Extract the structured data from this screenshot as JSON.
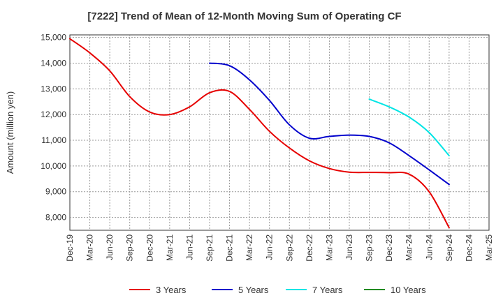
{
  "chart_data": {
    "type": "line",
    "title": "[7222]  Trend of Mean of 12-Month Moving Sum of Operating CF",
    "xlabel": "",
    "ylabel": "Amount (million yen)",
    "ylim": [
      7500,
      15100
    ],
    "yticks": [
      8000,
      9000,
      10000,
      11000,
      12000,
      13000,
      14000,
      15000
    ],
    "ytick_labels": [
      "8,000",
      "9,000",
      "10,000",
      "11,000",
      "12,000",
      "13,000",
      "14,000",
      "15,000"
    ],
    "categories": [
      "Dec-19",
      "Mar-20",
      "Jun-20",
      "Sep-20",
      "Dec-20",
      "Mar-21",
      "Jun-21",
      "Sep-21",
      "Dec-21",
      "Mar-22",
      "Jun-22",
      "Sep-22",
      "Dec-22",
      "Mar-23",
      "Jun-23",
      "Sep-23",
      "Dec-23",
      "Mar-24",
      "Jun-24",
      "Sep-24",
      "Dec-24",
      "Mar-25"
    ],
    "grid": true,
    "series": [
      {
        "name": "3 Years",
        "color": "#e60000",
        "values": [
          14950,
          14400,
          13700,
          12700,
          12100,
          12000,
          12300,
          12850,
          12900,
          12200,
          11350,
          10700,
          10200,
          9900,
          9760,
          9750,
          9740,
          9680,
          9000,
          7600,
          null,
          null
        ]
      },
      {
        "name": "5 Years",
        "color": "#0000cc",
        "values": [
          null,
          null,
          null,
          null,
          null,
          null,
          null,
          14000,
          13900,
          13350,
          12550,
          11600,
          11080,
          11150,
          11200,
          11150,
          10900,
          10400,
          9850,
          9280,
          null,
          null
        ]
      },
      {
        "name": "7 Years",
        "color": "#00e5e5",
        "values": [
          null,
          null,
          null,
          null,
          null,
          null,
          null,
          null,
          null,
          null,
          null,
          null,
          null,
          null,
          null,
          12600,
          12300,
          11900,
          11300,
          10400,
          null,
          null
        ]
      },
      {
        "name": "10 Years",
        "color": "#228b22",
        "values": [
          null,
          null,
          null,
          null,
          null,
          null,
          null,
          null,
          null,
          null,
          null,
          null,
          null,
          null,
          null,
          null,
          null,
          null,
          null,
          null,
          null,
          null
        ]
      }
    ]
  }
}
